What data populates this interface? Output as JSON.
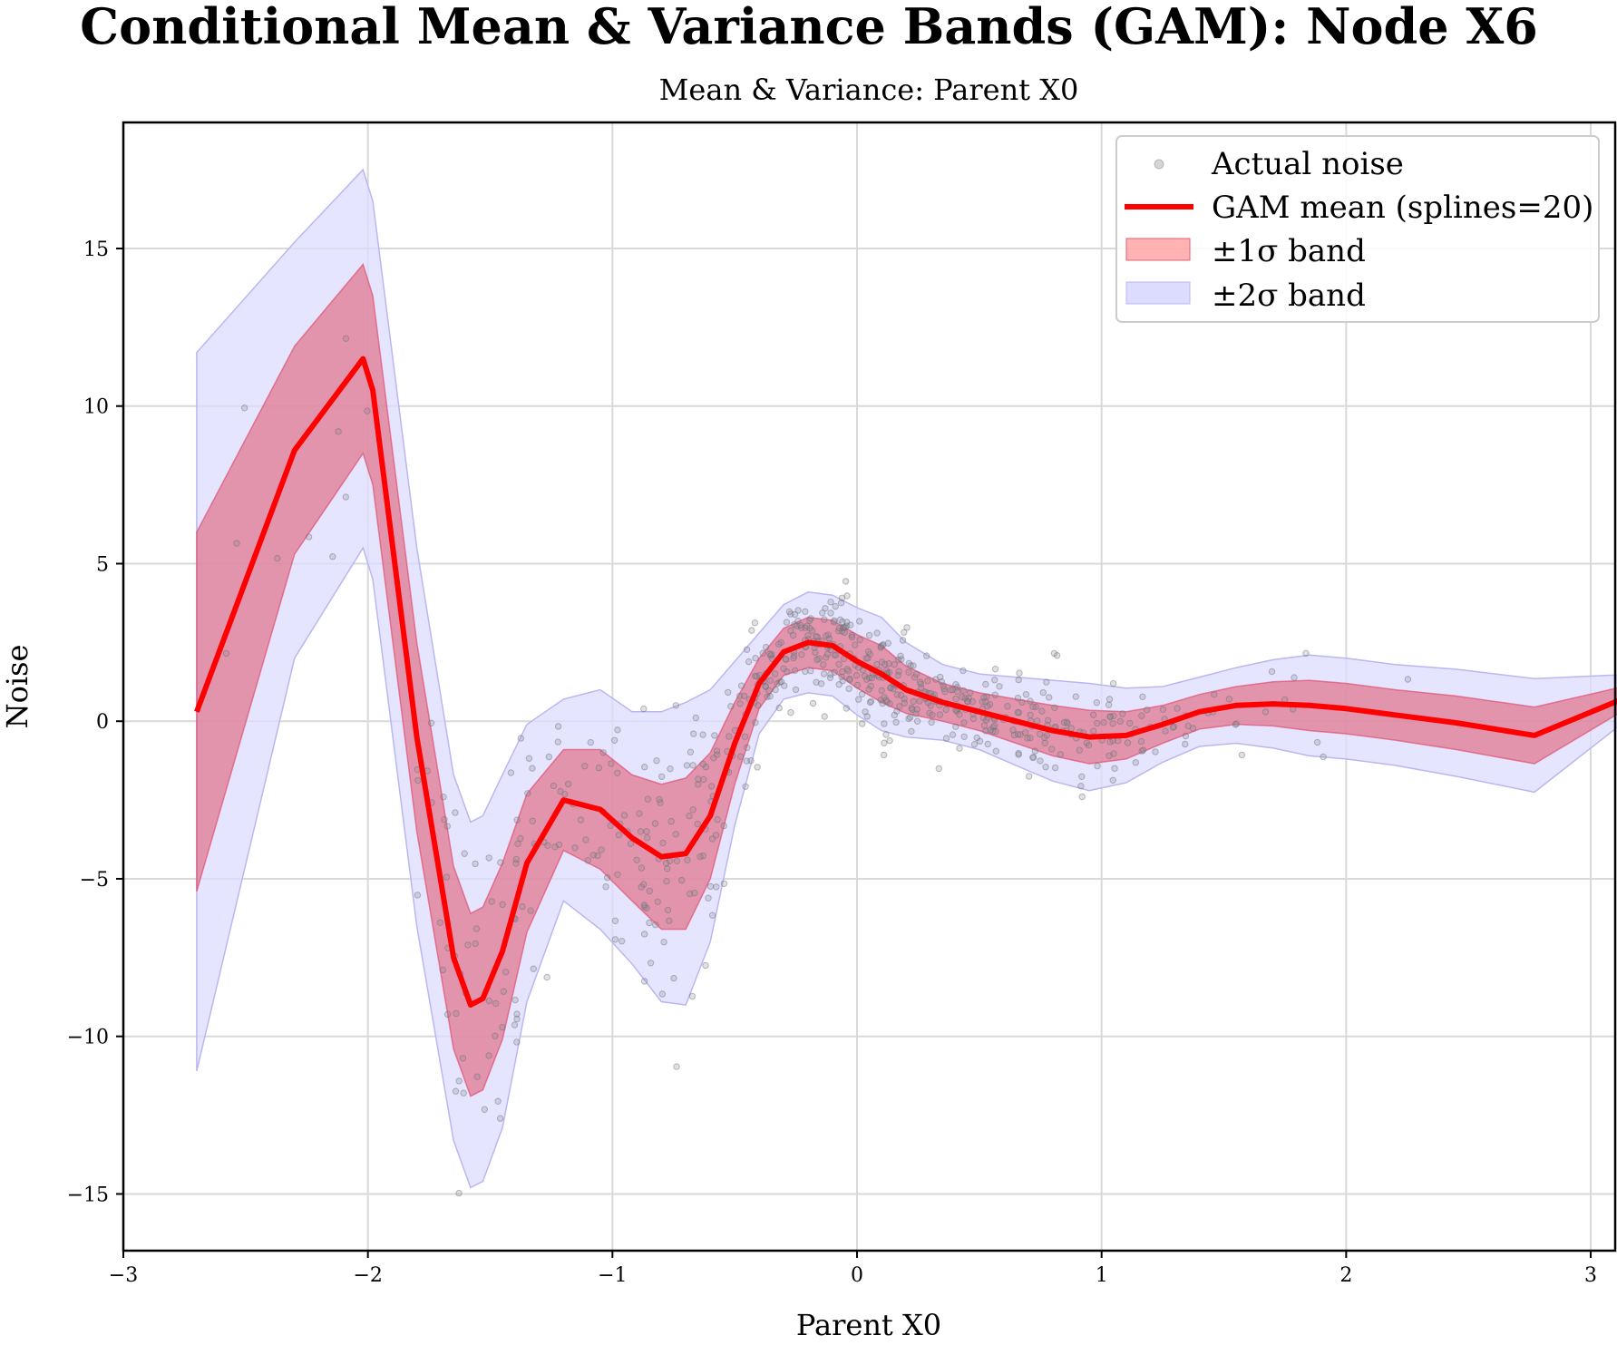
{
  "chart_data": {
    "type": "line",
    "title": "Conditional Mean & Variance Bands (GAM): Node X6",
    "subtitle": "Mean & Variance: Parent X0",
    "xlabel": "Parent X0",
    "ylabel": "Noise",
    "xlim": [
      -3.0,
      3.1
    ],
    "ylim": [
      -16.8,
      19.0
    ],
    "xticks": [
      -3,
      -2,
      -1,
      0,
      1,
      2,
      3
    ],
    "yticks": [
      -15,
      -10,
      -5,
      0,
      5,
      10,
      15
    ],
    "xtick_labels": [
      "−3",
      "−2",
      "−1",
      "0",
      "1",
      "2",
      "3"
    ],
    "ytick_labels": [
      "−15",
      "−10",
      "−5",
      "0",
      "5",
      "10",
      "15"
    ],
    "grid": true,
    "legend_position": "top-right",
    "colors": {
      "mean": "#ff0000",
      "band1": "#e07890",
      "band2": "#dcdcff",
      "band2_edge": "#b8b8f0",
      "points": "#888888"
    },
    "legend": [
      {
        "label": "Actual noise",
        "kind": "scatter"
      },
      {
        "label": "GAM mean (splines=20)",
        "kind": "line"
      },
      {
        "label": "±1σ band",
        "kind": "band1"
      },
      {
        "label": "±2σ band",
        "kind": "band2"
      }
    ],
    "series": [
      {
        "name": "GAM mean (splines=20)",
        "x": [
          -2.7,
          -2.3,
          -2.02,
          -1.98,
          -1.8,
          -1.65,
          -1.58,
          -1.53,
          -1.45,
          -1.35,
          -1.2,
          -1.05,
          -0.92,
          -0.8,
          -0.7,
          -0.6,
          -0.5,
          -0.4,
          -0.3,
          -0.2,
          -0.1,
          0.0,
          0.1,
          0.2,
          0.35,
          0.5,
          0.65,
          0.8,
          0.95,
          1.1,
          1.25,
          1.4,
          1.55,
          1.7,
          1.85,
          2.0,
          2.2,
          2.45,
          2.77,
          3.33
        ],
        "mean": [
          0.3,
          8.6,
          11.5,
          10.5,
          -0.5,
          -7.5,
          -9.0,
          -8.8,
          -7.3,
          -4.5,
          -2.5,
          -2.8,
          -3.7,
          -4.3,
          -4.2,
          -3.0,
          -0.7,
          1.2,
          2.2,
          2.5,
          2.4,
          1.9,
          1.5,
          1.0,
          0.6,
          0.3,
          0.0,
          -0.3,
          -0.5,
          -0.45,
          -0.1,
          0.3,
          0.5,
          0.55,
          0.5,
          0.4,
          0.2,
          -0.05,
          -0.45,
          1.35
        ],
        "sigma": [
          5.7,
          3.3,
          3.0,
          3.0,
          3.0,
          2.9,
          2.9,
          2.9,
          2.8,
          2.2,
          1.6,
          1.9,
          2.0,
          2.3,
          2.4,
          2.0,
          1.3,
          0.8,
          0.75,
          0.8,
          0.8,
          0.85,
          0.9,
          0.75,
          0.6,
          0.6,
          0.7,
          0.8,
          0.85,
          0.75,
          0.6,
          0.55,
          0.6,
          0.7,
          0.8,
          0.8,
          0.8,
          0.85,
          0.9,
          0.1
        ]
      }
    ],
    "scatter": {
      "name": "Actual noise",
      "note": "approximately 700 points scattered around the mean with spread matching the bands"
    }
  }
}
